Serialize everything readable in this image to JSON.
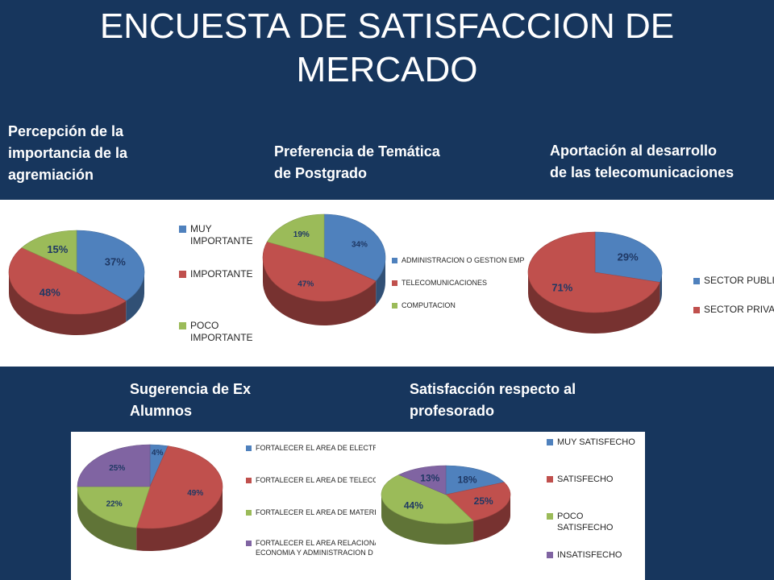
{
  "slide": {
    "title_line1": "ENCUESTA DE SATISFACCION DE",
    "title_line2": "MERCADO"
  },
  "chart_data": [
    {
      "type": "pie",
      "title_lines": [
        "Percepción de la",
        "importancia de  la",
        "agremiación"
      ],
      "categories": [
        [
          "MUY",
          "IMPORTANTE"
        ],
        [
          "IMPORTANTE"
        ],
        [
          "POCO",
          "IMPORTANTE"
        ]
      ],
      "values": [
        37,
        48,
        15
      ],
      "labels": [
        "37%",
        "48%",
        "15%"
      ],
      "colors": [
        "#4f81bd",
        "#c0504d",
        "#9bbb59"
      ],
      "legend": "right"
    },
    {
      "type": "pie",
      "title_lines": [
        "Preferencia de Temática",
        "de Postgrado"
      ],
      "categories": [
        [
          "ADMINISTRACION O GESTION EMPRESARIAL"
        ],
        [
          "TELECOMUNICACIONES"
        ],
        [
          "COMPUTACION"
        ]
      ],
      "values": [
        34,
        47,
        19
      ],
      "labels": [
        "34%",
        "47%",
        "19%"
      ],
      "colors": [
        "#4f81bd",
        "#c0504d",
        "#9bbb59"
      ],
      "legend": "right"
    },
    {
      "type": "pie",
      "title_lines": [
        "Aportación al desarrollo",
        "de las telecomunicaciones"
      ],
      "categories": [
        [
          "SECTOR PUBLICO"
        ],
        [
          "SECTOR PRIVADO"
        ]
      ],
      "values": [
        29,
        71
      ],
      "labels": [
        "29%",
        "71%"
      ],
      "colors": [
        "#4f81bd",
        "#c0504d"
      ],
      "legend": "right"
    },
    {
      "type": "pie",
      "title_lines": [
        "Sugerencia de Ex",
        "Alumnos"
      ],
      "categories": [
        [
          "FORTALECER EL AREA DE ELECTRO"
        ],
        [
          "FORTALECER EL AREA DE TELECOM"
        ],
        [
          "FORTALECER EL AREA DE MATERIA"
        ],
        [
          "FORTALECER EL AREA RELACIONA",
          "ECONOMIA Y ADMINISTRACION D"
        ]
      ],
      "values": [
        4,
        49,
        22,
        25
      ],
      "labels": [
        "4%",
        "49%",
        "22%",
        "25%"
      ],
      "colors": [
        "#4f81bd",
        "#c0504d",
        "#9bbb59",
        "#8064a2"
      ],
      "legend": "right"
    },
    {
      "type": "pie",
      "title_lines": [
        "Satisfacción respecto al",
        "profesorado"
      ],
      "categories": [
        [
          "MUY SATISFECHO"
        ],
        [
          "SATISFECHO"
        ],
        [
          "POCO",
          "SATISFECHO"
        ],
        [
          "INSATISFECHO"
        ]
      ],
      "values": [
        18,
        25,
        44,
        13
      ],
      "labels": [
        "18%",
        "25%",
        "44%",
        "13%"
      ],
      "colors": [
        "#4f81bd",
        "#c0504d",
        "#9bbb59",
        "#8064a2"
      ],
      "legend": "right"
    }
  ]
}
